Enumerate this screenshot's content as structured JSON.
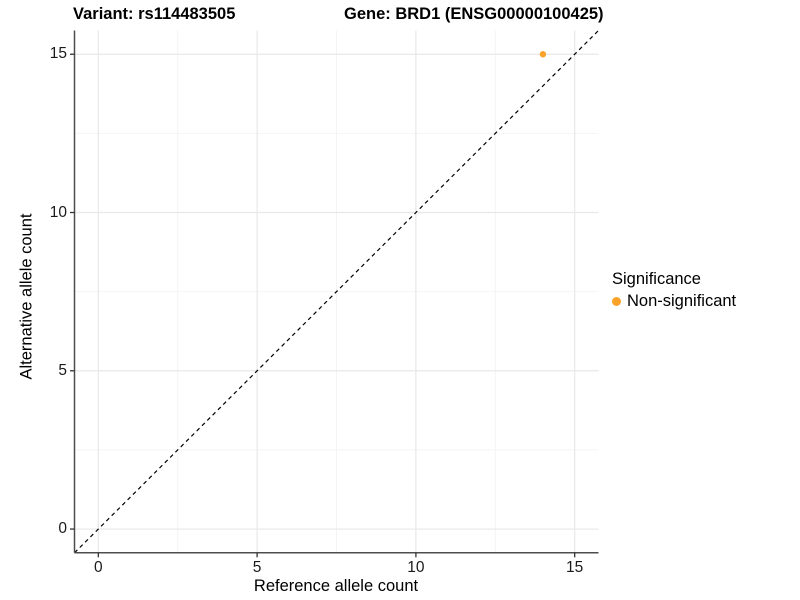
{
  "header": {
    "title_left": "Variant: rs114483505",
    "title_right": "Gene: BRD1 (ENSG00000100425)"
  },
  "chart_data": {
    "type": "scatter",
    "title": "Variant: rs114483505          Gene: BRD1 (ENSG00000100425)",
    "xlabel": "Reference allele count",
    "ylabel": "Alternative allele count",
    "xlim": [
      -0.75,
      15.75
    ],
    "ylim": [
      -0.75,
      15.75
    ],
    "x_major_ticks": [
      0,
      5,
      10,
      15
    ],
    "y_major_ticks": [
      0,
      5,
      10,
      15
    ],
    "x_minor_ticks": [
      2.5,
      7.5,
      12.5
    ],
    "y_minor_ticks": [
      2.5,
      7.5,
      12.5
    ],
    "grid": "on",
    "identity_line": {
      "slope": 1,
      "intercept": 0,
      "style": "dashed",
      "color": "#000000"
    },
    "series": [
      {
        "name": "Non-significant",
        "color": "#FAA328",
        "points": [
          {
            "x": 14,
            "y": 15
          }
        ]
      }
    ],
    "legend": {
      "title": "Significance",
      "position": "right",
      "entries": [
        {
          "label": "Non-significant",
          "color": "#FAA328"
        }
      ]
    }
  },
  "colors": {
    "accent_orange": "#FAA328",
    "axis_line": "#4d4d4d",
    "tick_mark": "#333333",
    "grid_major": "#e8e8e8",
    "grid_minor": "#f4f4f4",
    "reference_line": "#000000"
  }
}
